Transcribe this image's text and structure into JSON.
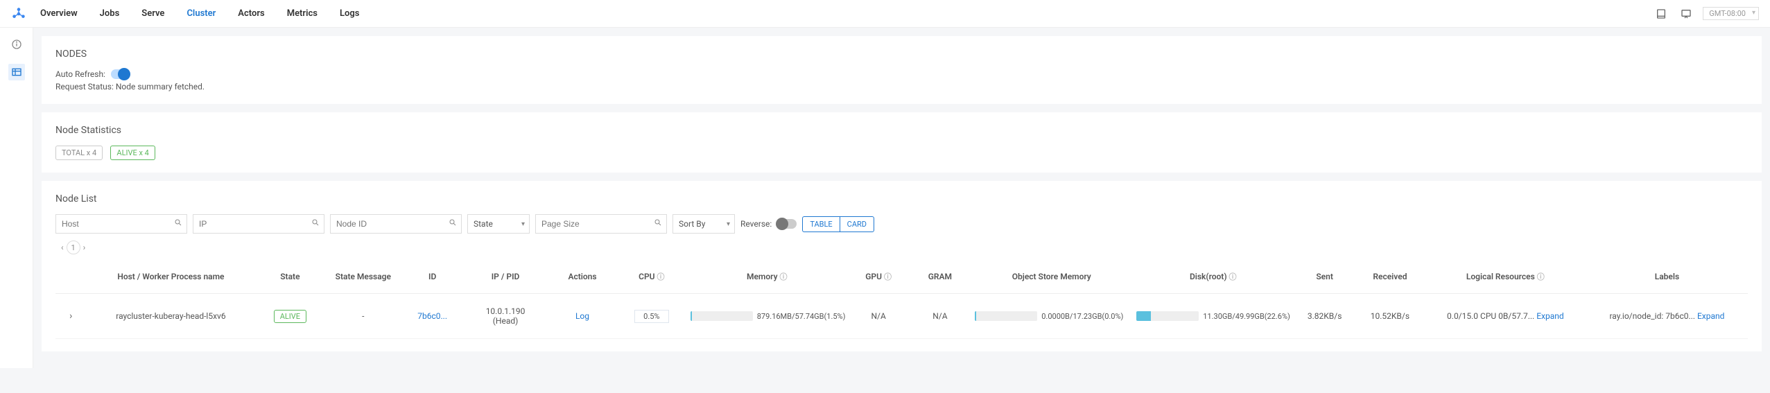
{
  "colors": {
    "accent": "#1F78D1",
    "green": "#5cb85c",
    "bg": "#f5f6f8",
    "bar_fill": "#5bc0de",
    "bar_track": "#eeeeee"
  },
  "topnav": {
    "tabs": [
      "Overview",
      "Jobs",
      "Serve",
      "Cluster",
      "Actors",
      "Metrics",
      "Logs"
    ],
    "active_index": 3,
    "timezone": "GMT-08:00"
  },
  "nodes_panel": {
    "title": "NODES",
    "auto_refresh_label": "Auto Refresh:",
    "auto_refresh_on": true,
    "request_status": "Request Status: Node summary fetched."
  },
  "stats_panel": {
    "title": "Node Statistics",
    "badges": [
      {
        "text": "TOTAL x 4",
        "variant": "plain"
      },
      {
        "text": "ALIVE x 4",
        "variant": "green"
      }
    ]
  },
  "list_panel": {
    "title": "Node List",
    "filters": {
      "host_placeholder": "Host",
      "ip_placeholder": "IP",
      "nodeid_placeholder": "Node ID",
      "state_label": "State",
      "pagesize_placeholder": "Page Size",
      "sortby_label": "Sort By",
      "reverse_label": "Reverse:",
      "view_table": "TABLE",
      "view_card": "CARD"
    },
    "pager": {
      "page": "1"
    },
    "columns": {
      "hwp": "Host / Worker Process name",
      "state": "State",
      "smsg": "State Message",
      "id": "ID",
      "ip": "IP / PID",
      "actions": "Actions",
      "cpu": "CPU",
      "mem": "Memory",
      "gpu": "GPU",
      "gram": "GRAM",
      "osm": "Object Store Memory",
      "disk": "Disk(root)",
      "sent": "Sent",
      "recv": "Received",
      "lres": "Logical Resources",
      "labels": "Labels"
    },
    "rows": [
      {
        "hwp": "raycluster-kuberay-head-l5xv6",
        "state": "ALIVE",
        "smsg": "-",
        "id": "7b6c0...",
        "ip_line1": "10.0.1.190",
        "ip_line2": "(Head)",
        "action": "Log",
        "cpu": {
          "text": "0.5%"
        },
        "mem": {
          "pct": 1.5,
          "text": "879.16MB/57.74GB(1.5%)"
        },
        "gpu": "N/A",
        "gram": "N/A",
        "osm": {
          "pct": 0,
          "text": "0.0000B/17.23GB(0.0%)"
        },
        "disk": {
          "pct": 22.6,
          "text": "11.30GB/49.99GB(22.6%)"
        },
        "sent": "3.82KB/s",
        "recv": "10.52KB/s",
        "lres": {
          "text": "0.0/15.0 CPU 0B/57.7...",
          "action": "Expand"
        },
        "labels": {
          "text": "ray.io/node_id: 7b6c0...",
          "action": "Expand"
        }
      }
    ]
  }
}
